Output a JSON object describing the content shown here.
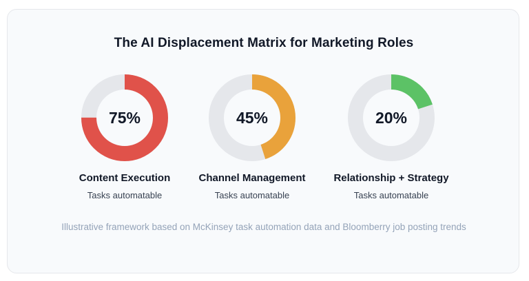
{
  "title": "The AI Displacement Matrix for Marketing Roles",
  "footnote": "Illustrative framework based on McKinsey task automation data and Bloomberry job posting trends",
  "colors": {
    "track": "#e5e7eb",
    "content_execution": "#e0524a",
    "channel_management": "#e9a23b",
    "relationship_strategy": "#5cc266"
  },
  "chart_data": {
    "type": "pie",
    "subtype": "donut-set",
    "title": "The AI Displacement Matrix for Marketing Roles",
    "series": [
      {
        "name": "Content Execution",
        "value": 75,
        "label": "75%",
        "subtitle": "Tasks automatable",
        "color": "#e0524a"
      },
      {
        "name": "Channel Management",
        "value": 45,
        "label": "45%",
        "subtitle": "Tasks automatable",
        "color": "#e9a23b"
      },
      {
        "name": "Relationship + Strategy",
        "value": 20,
        "label": "20%",
        "subtitle": "Tasks automatable",
        "color": "#5cc266"
      }
    ],
    "max": 100,
    "unit": "%"
  }
}
